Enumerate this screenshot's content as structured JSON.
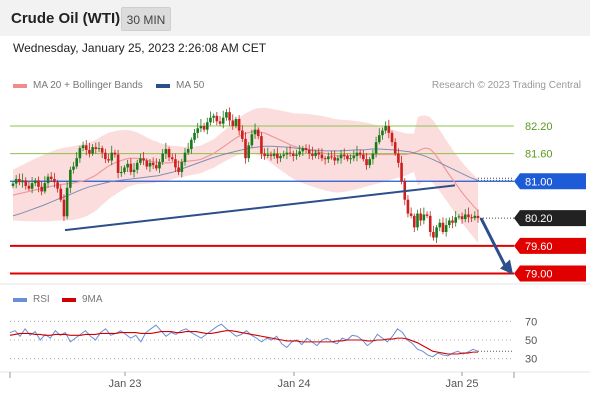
{
  "header": {
    "title": "Crude Oil (WTI)",
    "timeframe": "30 MIN"
  },
  "datetime_label": "Wednesday, January 25, 2023 2:26:08 AM CET",
  "legend": {
    "ma20_label": "MA 20 + Bollinger Bands",
    "ma50_label": "MA 50",
    "copyright": "Research © 2023 Trading Central",
    "rsi_label": "RSI",
    "rsi_ma_label": "9MA"
  },
  "colors": {
    "bollinger": "#f8b4b4",
    "ma20": "#ef9a9a",
    "ma50": "#2c4e8c",
    "pivot": "#1e5bd6",
    "support": "#e00000",
    "resistance": "#8bc34a",
    "up_candle": "#1a7a1a",
    "down_candle": "#cc1f1f",
    "last_price": "#222222",
    "rsi": "#6a8fd8",
    "rsi_ma": "#d00000"
  },
  "chart_data": [
    {
      "type": "line",
      "subtype": "candlestick-with-levels",
      "ylim": [
        78.75,
        82.85
      ],
      "x_ticks": [
        "Jan 23",
        "Jan 24",
        "Jan 25"
      ],
      "levels": [
        {
          "value": 82.2,
          "label": "82.20",
          "kind": "resistance"
        },
        {
          "value": 81.6,
          "label": "81.60",
          "kind": "resistance"
        },
        {
          "value": 81.0,
          "label": "81.00",
          "kind": "pivot"
        },
        {
          "value": 80.2,
          "label": "80.20",
          "kind": "last"
        },
        {
          "value": 79.6,
          "label": "79.60",
          "kind": "support"
        },
        {
          "value": 79.0,
          "label": "79.00",
          "kind": "support"
        }
      ],
      "trendline": {
        "from": 79.94,
        "to": 80.91
      },
      "target_arrow": {
        "from": 80.2,
        "to": 79.0
      },
      "close_series": [
        80.95,
        81.05,
        80.98,
        81.02,
        80.9,
        80.84,
        80.96,
        81.02,
        80.88,
        80.78,
        80.96,
        81.1,
        81.05,
        80.98,
        80.84,
        80.6,
        80.24,
        80.86,
        81.25,
        81.32,
        81.5,
        81.72,
        81.78,
        81.68,
        81.6,
        81.74,
        81.7,
        81.72,
        81.62,
        81.48,
        81.45,
        81.62,
        81.58,
        81.18,
        81.2,
        81.3,
        81.38,
        81.2,
        81.25,
        81.4,
        81.5,
        81.45,
        81.32,
        81.4,
        81.35,
        81.28,
        81.42,
        81.6,
        81.7,
        81.52,
        81.48,
        81.3,
        81.2,
        81.42,
        81.62,
        81.7,
        81.9,
        82.05,
        82.15,
        82.2,
        82.12,
        82.28,
        82.38,
        82.42,
        82.3,
        82.25,
        82.38,
        82.5,
        82.32,
        82.2,
        82.35,
        82.1,
        81.92,
        81.5,
        81.78,
        82.02,
        82.12,
        81.98,
        81.6,
        81.55,
        81.58,
        81.55,
        81.6,
        81.5,
        81.55,
        81.58,
        81.62,
        81.6,
        81.55,
        81.58,
        81.65,
        81.72,
        81.68,
        81.6,
        81.55,
        81.62,
        81.58,
        81.5,
        81.48,
        81.54,
        81.52,
        81.45,
        81.5,
        81.58,
        81.55,
        81.48,
        81.5,
        81.55,
        81.62,
        81.58,
        81.48,
        81.35,
        81.48,
        81.6,
        81.85,
        82.0,
        82.1,
        82.2,
        82.05,
        81.85,
        81.6,
        81.4,
        81.0,
        80.6,
        80.3,
        80.25,
        80.0,
        80.3,
        80.15,
        80.28,
        80.25,
        79.9,
        79.78,
        80.0,
        80.1,
        79.9,
        80.05,
        80.15,
        80.1,
        80.22,
        80.24,
        80.18,
        80.28,
        80.22,
        80.2,
        80.25,
        80.2
      ],
      "ma20_series": [
        80.7,
        80.72,
        80.74,
        80.76,
        80.78,
        80.8,
        80.82,
        80.84,
        80.86,
        80.88,
        80.9,
        80.92,
        80.93,
        80.94,
        80.95,
        80.96,
        80.98,
        81.0,
        81.02,
        81.06,
        81.1,
        81.15,
        81.22,
        81.28,
        81.34,
        81.38,
        81.42,
        81.45,
        81.48,
        81.5,
        81.5,
        81.5,
        81.48,
        81.46,
        81.44,
        81.42,
        81.42,
        81.4,
        81.4,
        81.4,
        81.41,
        81.42,
        81.42,
        81.43,
        81.44,
        81.45,
        81.46,
        81.48,
        81.52,
        81.56,
        81.6,
        81.66,
        81.72,
        81.78,
        81.84,
        81.9,
        81.96,
        82.0,
        82.04,
        82.06,
        82.08,
        82.08,
        82.06,
        82.04,
        82.0,
        81.96,
        81.92,
        81.88,
        81.84,
        81.8,
        81.76,
        81.74,
        81.72,
        81.7,
        81.68,
        81.66,
        81.64,
        81.62,
        81.6,
        81.58,
        81.56,
        81.55,
        81.55,
        81.55,
        81.56,
        81.56,
        81.57,
        81.57,
        81.58,
        81.58,
        81.58,
        81.58,
        81.58,
        81.58,
        81.58,
        81.58,
        81.58,
        81.58,
        81.58,
        81.6,
        81.62,
        81.65,
        81.7,
        81.72,
        81.7,
        81.62,
        81.5,
        81.38,
        81.25,
        81.12,
        81.0,
        80.88,
        80.76,
        80.65,
        80.55,
        80.45,
        80.36
      ],
      "ma50_series": [
        80.25,
        80.3,
        80.36,
        80.42,
        80.48,
        80.55,
        80.62,
        80.68,
        80.75,
        80.82,
        80.88,
        80.92,
        80.96,
        81.0,
        81.02,
        81.04,
        81.06,
        81.08,
        81.1,
        81.12,
        81.16,
        81.2,
        81.26,
        81.32,
        81.38,
        81.44,
        81.5,
        81.55,
        81.6,
        81.64,
        81.68,
        81.72,
        81.74,
        81.76,
        81.76,
        81.75,
        81.74,
        81.72,
        81.7,
        81.68,
        81.67,
        81.66,
        81.66,
        81.66,
        81.67,
        81.68,
        81.68,
        81.7,
        81.7,
        81.69,
        81.68,
        81.66,
        81.64,
        81.6,
        81.55,
        81.48,
        81.4,
        81.32,
        81.24,
        81.16,
        81.08,
        81.02
      ]
    },
    {
      "type": "line",
      "subtype": "RSI",
      "ylim": [
        20,
        80
      ],
      "y_ticks": [
        "70",
        "50",
        "30"
      ],
      "series": [
        {
          "name": "RSI",
          "values": [
            58,
            60,
            54,
            62,
            55,
            59,
            50,
            56,
            52,
            60,
            55,
            58,
            48,
            52,
            56,
            60,
            54,
            50,
            58,
            62,
            55,
            57,
            60,
            56,
            52,
            55,
            48,
            58,
            62,
            66,
            60,
            54,
            58,
            56,
            60,
            62,
            58,
            55,
            52,
            56,
            60,
            64,
            67,
            62,
            58,
            54,
            56,
            60,
            55,
            52,
            48,
            52,
            50,
            54,
            46,
            42,
            48,
            50,
            45,
            52,
            48,
            44,
            50,
            52,
            48,
            46,
            52,
            50,
            55,
            54,
            50,
            44,
            48,
            56,
            52,
            48,
            54,
            62,
            58,
            50,
            46,
            40,
            38,
            34,
            32,
            36,
            34,
            33,
            36,
            38,
            35,
            37,
            40,
            38
          ]
        },
        {
          "name": "9MA",
          "values": [
            55,
            56,
            57,
            57,
            57,
            56,
            56,
            55,
            55,
            56,
            56,
            56,
            55,
            55,
            55,
            56,
            56,
            56,
            57,
            57,
            57,
            57,
            58,
            58,
            58,
            58,
            57,
            57,
            57,
            58,
            59,
            59,
            59,
            58,
            58,
            59,
            59,
            59,
            58,
            57,
            57,
            58,
            59,
            60,
            60,
            59,
            58,
            57,
            56,
            55,
            54,
            53,
            52,
            51,
            50,
            49,
            49,
            49,
            48,
            48,
            48,
            48,
            48,
            48,
            48,
            49,
            49,
            50,
            50,
            50,
            50,
            49,
            49,
            50,
            50,
            51,
            51,
            52,
            52,
            51,
            49,
            47,
            44,
            41,
            38,
            37,
            36,
            35,
            35,
            35,
            36,
            36,
            37,
            37
          ]
        }
      ]
    }
  ]
}
